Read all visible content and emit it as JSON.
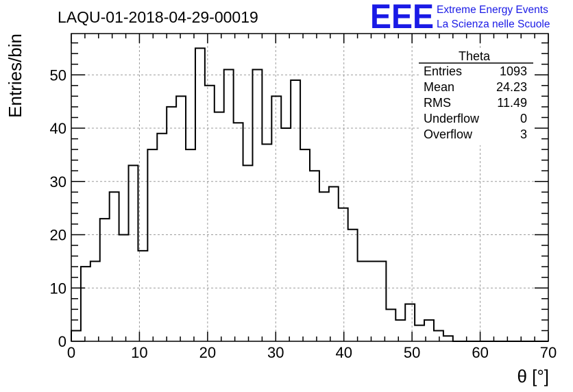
{
  "chart_data": {
    "type": "histogram",
    "title": "LAQU-01-2018-04-29-00019",
    "xlabel": "θ [°]",
    "ylabel": "Entries/bin",
    "xlim": [
      0,
      70
    ],
    "ylim": [
      0,
      57.75
    ],
    "bin_width": 1.4,
    "x_ticks": [
      0,
      10,
      20,
      30,
      40,
      50,
      60,
      70
    ],
    "y_ticks": [
      0,
      10,
      20,
      30,
      40,
      50
    ],
    "grid": true,
    "values": [
      2,
      14,
      15,
      23,
      28,
      20,
      33,
      17,
      36,
      39,
      44,
      46,
      36,
      55,
      48,
      43,
      51,
      41,
      33,
      51,
      37,
      46,
      40,
      49,
      36,
      32,
      28,
      29,
      25,
      21,
      15,
      15,
      15,
      6,
      4,
      7,
      3,
      4,
      2,
      1,
      0,
      0,
      0,
      0,
      0,
      0,
      0,
      0,
      0,
      0
    ],
    "stats_box": {
      "title": "Theta",
      "rows": [
        {
          "label": "Entries",
          "value": "1093"
        },
        {
          "label": "Mean",
          "value": "24.23"
        },
        {
          "label": "RMS",
          "value": "11.49"
        },
        {
          "label": "Underflow",
          "value": "0"
        },
        {
          "label": "Overflow",
          "value": "3"
        }
      ]
    },
    "logo": {
      "text": "EEE",
      "line1": "Extreme Energy Events",
      "line2": "La Scienza nelle Scuole",
      "color": "#1a1ae6"
    }
  }
}
